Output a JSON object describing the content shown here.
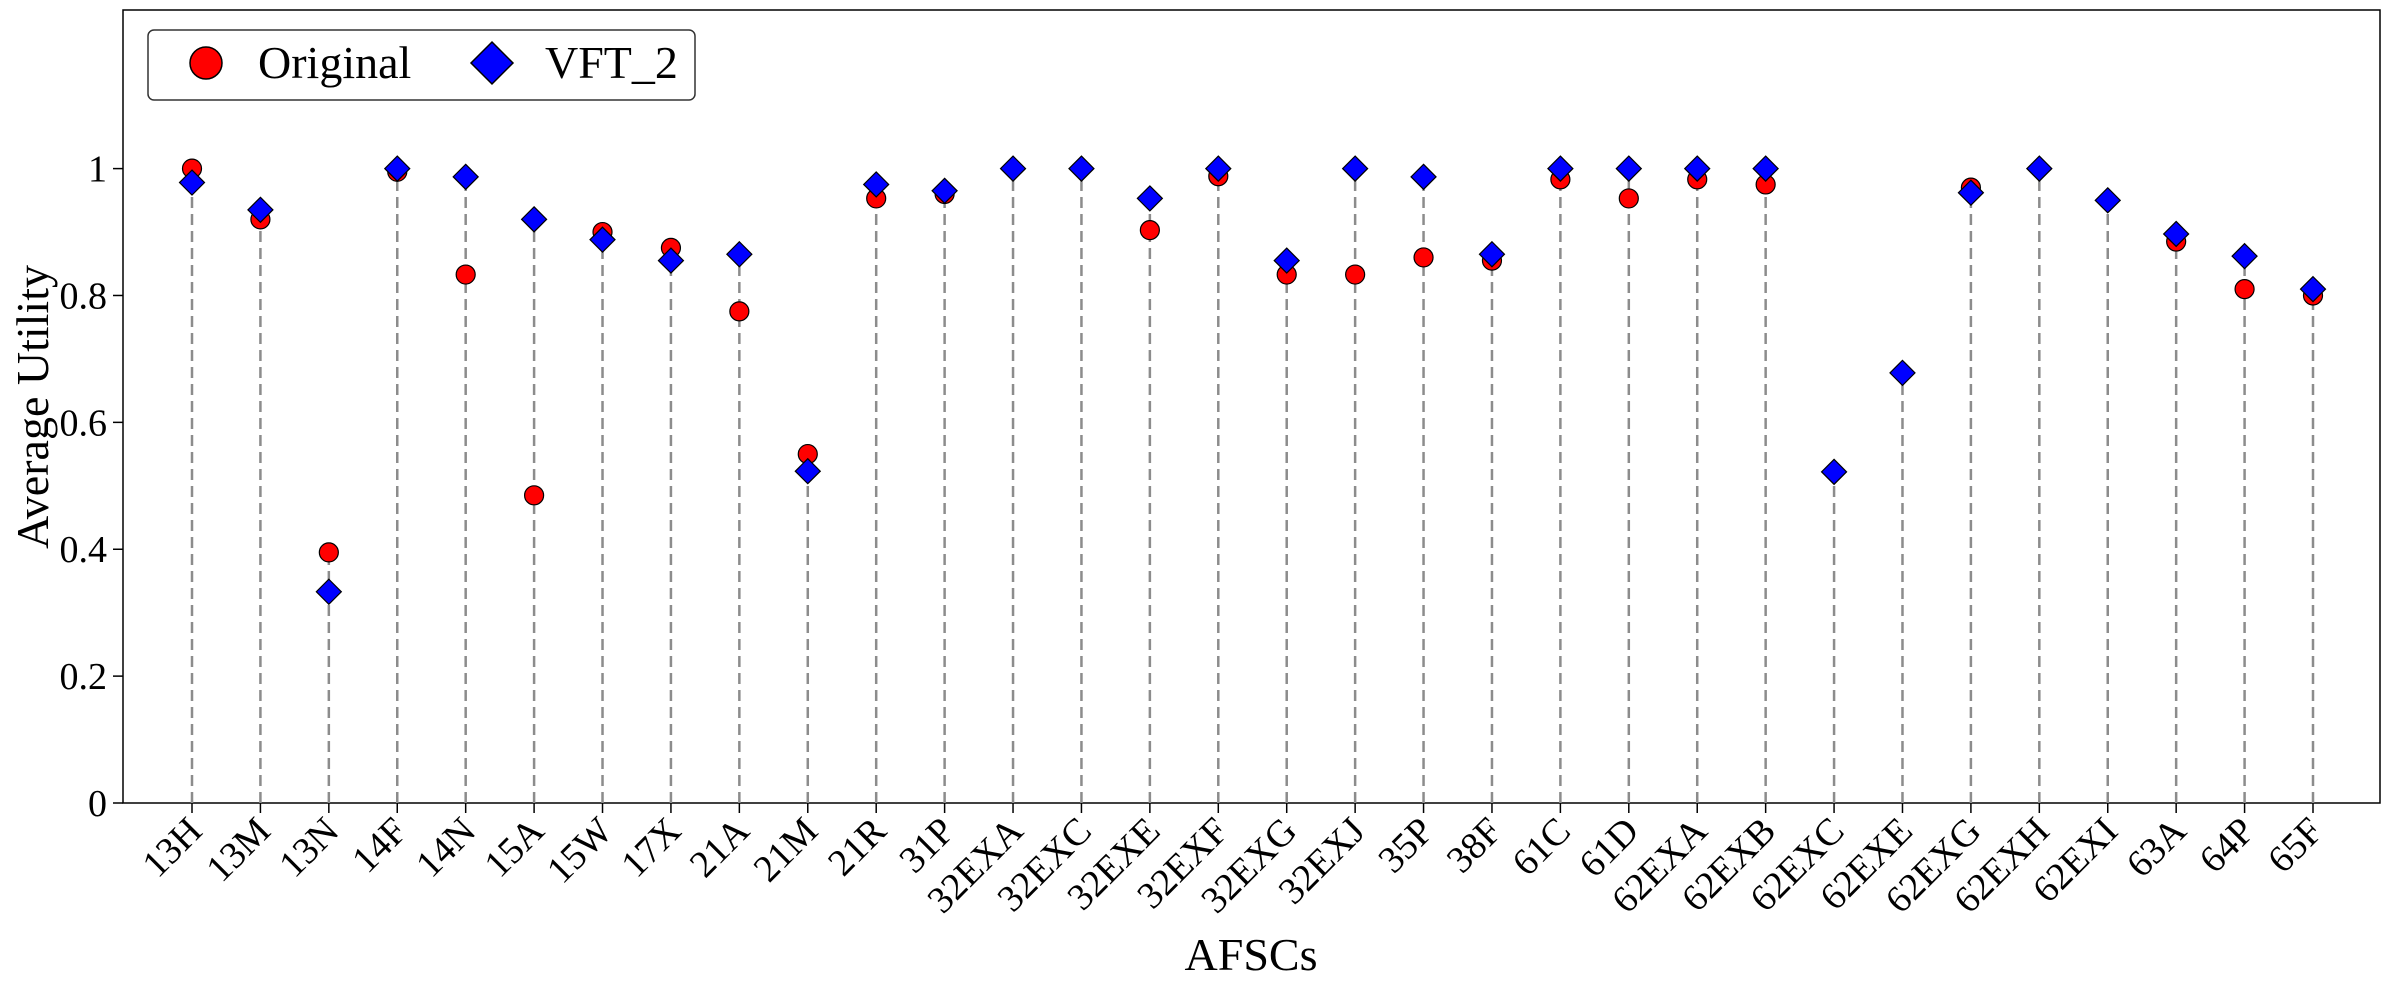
{
  "chart_data": {
    "type": "scatter",
    "xlabel": "AFSCs",
    "ylabel": "Average Utility",
    "ylim": [
      0,
      1.25
    ],
    "yticks": [
      0,
      0.2,
      0.4,
      0.6,
      0.8,
      1
    ],
    "ytick_labels": [
      "0",
      "0.2",
      "0.4",
      "0.6",
      "0.8",
      "1"
    ],
    "grid": false,
    "legend_position": "top-left",
    "drop_lines": "dashed gray from 0 to max value per category",
    "categories": [
      "13H",
      "13M",
      "13N",
      "14F",
      "14N",
      "15A",
      "15W",
      "17X",
      "21A",
      "21M",
      "21R",
      "31P",
      "32EXA",
      "32EXC",
      "32EXE",
      "32EXF",
      "32EXG",
      "32EXJ",
      "35P",
      "38F",
      "61C",
      "61D",
      "62EXA",
      "62EXB",
      "62EXC",
      "62EXE",
      "62EXG",
      "62EXH",
      "62EXI",
      "63A",
      "64P",
      "65F"
    ],
    "series": [
      {
        "name": "Original",
        "marker": "circle",
        "color": "#ff0000",
        "values": [
          1.0,
          0.92,
          0.395,
          0.995,
          0.833,
          0.485,
          0.9,
          0.875,
          0.775,
          0.55,
          0.953,
          0.96,
          null,
          null,
          0.903,
          0.988,
          0.833,
          0.833,
          0.86,
          0.855,
          0.983,
          0.953,
          0.983,
          0.975,
          null,
          null,
          0.97,
          null,
          null,
          0.885,
          0.81,
          0.8
        ]
      },
      {
        "name": "VFT_2",
        "marker": "diamond",
        "color": "#0000ff",
        "values": [
          0.978,
          0.935,
          0.333,
          1.0,
          0.987,
          0.92,
          0.888,
          0.855,
          0.865,
          0.523,
          0.975,
          0.965,
          1.0,
          1.0,
          0.953,
          1.0,
          0.855,
          1.0,
          0.987,
          0.865,
          1.0,
          1.0,
          1.0,
          1.0,
          0.522,
          0.678,
          0.962,
          1.0,
          0.95,
          0.897,
          0.862,
          0.81
        ]
      }
    ]
  }
}
